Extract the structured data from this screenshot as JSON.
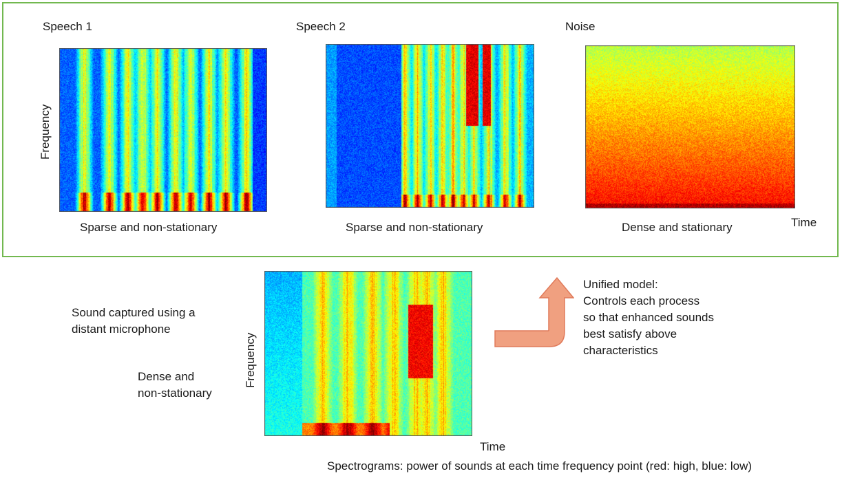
{
  "top_panel": {
    "speech1": {
      "title": "Speech 1",
      "caption": "Sparse and non-stationary"
    },
    "speech2": {
      "title": "Speech 2",
      "caption": "Sparse and non-stationary"
    },
    "noise": {
      "title": "Noise",
      "caption": "Dense and stationary"
    },
    "frequency_label": "Frequency",
    "time_label": "Time"
  },
  "observed": {
    "description": "Sound captured using a\ndistant microphone",
    "characteristic": "Dense and\nnon-stationary",
    "frequency_label": "Frequency",
    "time_label": "Time"
  },
  "model": {
    "text": "Unified model:\nControls each process\nso that enhanced sounds\nbest satisfy above\ncharacteristics"
  },
  "footnote": "Spectrograms: power of sounds at each time frequency point (red: high, blue: low)",
  "colors": {
    "panel_border": "#72b84f",
    "arrow_fill": "#f0a080",
    "arrow_stroke": "#e07a5a"
  }
}
